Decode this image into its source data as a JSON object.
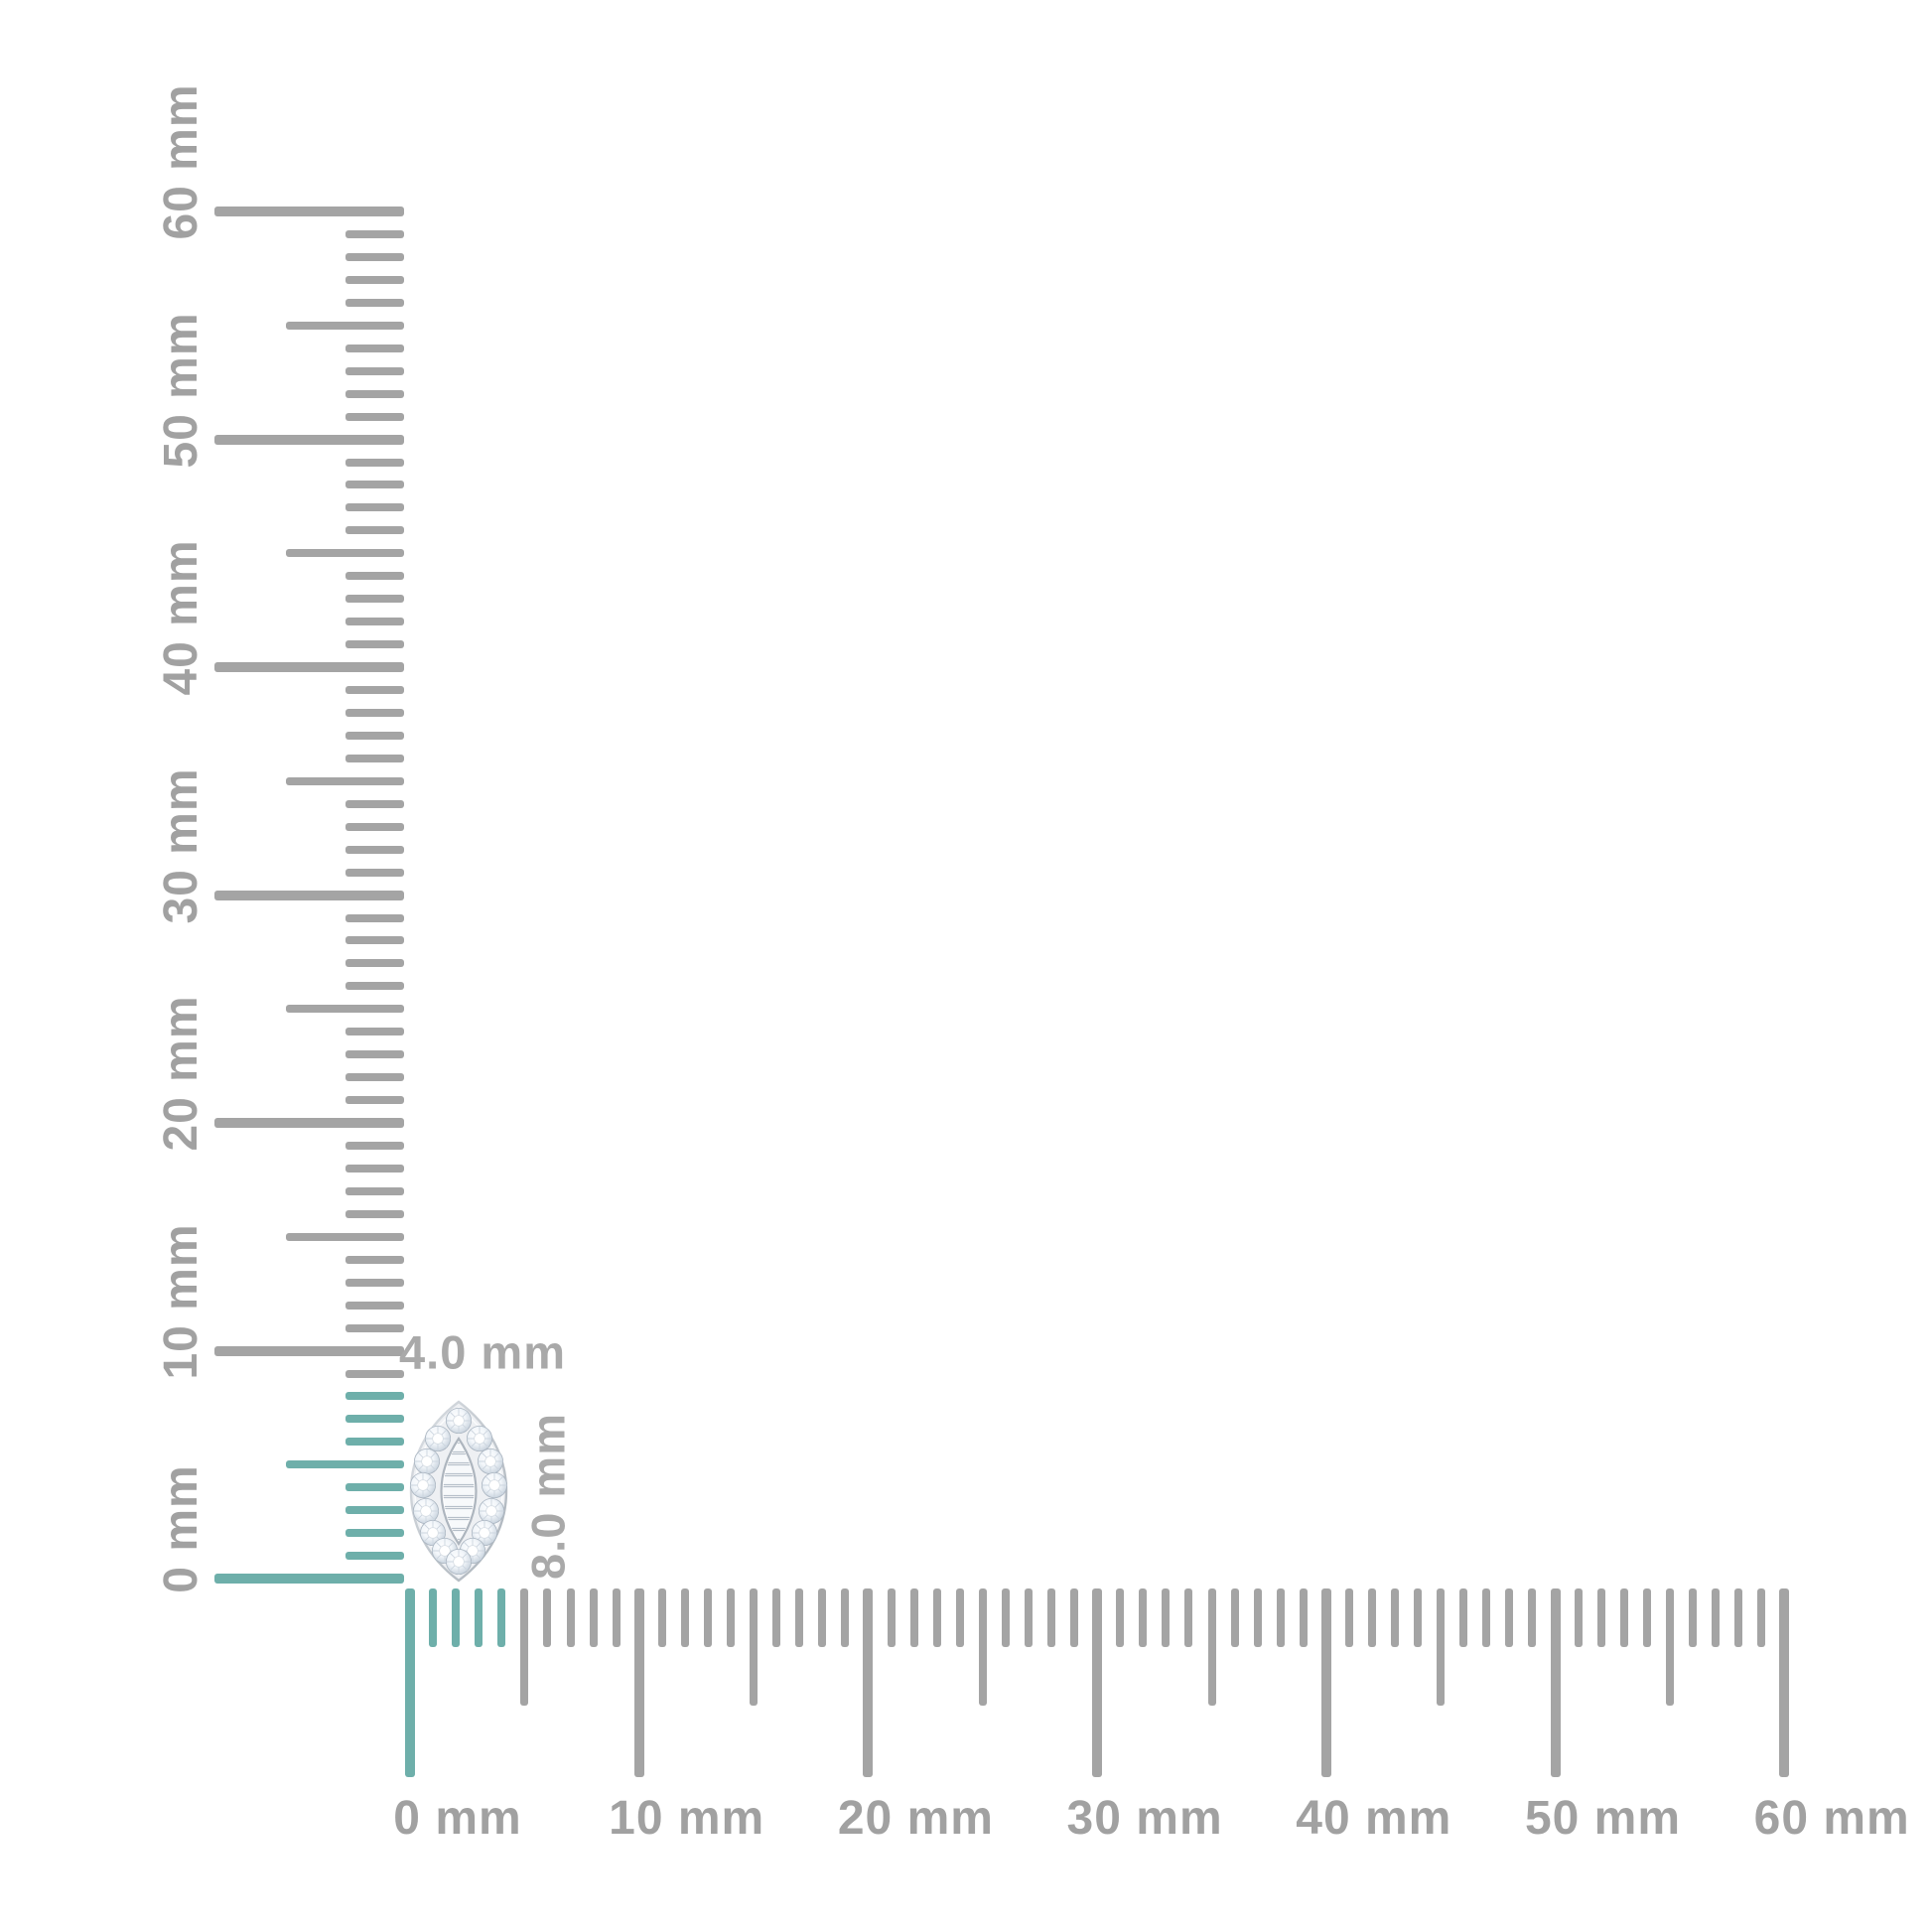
{
  "diagram": {
    "unit": "mm",
    "vertical_ruler": {
      "orientation": "vertical",
      "min_mm": 0,
      "max_mm": 60,
      "minor_step_mm": 1,
      "half_step_mm": 5,
      "major_step_mm": 10,
      "tick_labels": [
        "0 mm",
        "10 mm",
        "20 mm",
        "30 mm",
        "40 mm",
        "50 mm",
        "60 mm"
      ],
      "highlighted_span_mm": 8
    },
    "horizontal_ruler": {
      "orientation": "horizontal",
      "min_mm": 0,
      "max_mm": 60,
      "minor_step_mm": 1,
      "half_step_mm": 5,
      "major_step_mm": 10,
      "tick_labels": [
        "0 mm",
        "10 mm",
        "20 mm",
        "30 mm",
        "40 mm",
        "50 mm",
        "60 mm"
      ],
      "highlighted_span_mm": 4
    },
    "item": {
      "name": "marquise halo diamond stud",
      "width_mm": 4.0,
      "height_mm": 8.0,
      "width_label": "4.0 mm",
      "height_label": "8.0 mm"
    },
    "colors": {
      "tick_gray": "#a4a4a4",
      "ruler_label_gray": "#a1a1a1",
      "dimension_label_gray": "#a9a9a9",
      "highlight_teal": "#6eafaa",
      "metal_silver": "#c2c8ce",
      "diamond_white": "#eef2f6",
      "background": "#ffffff"
    }
  }
}
